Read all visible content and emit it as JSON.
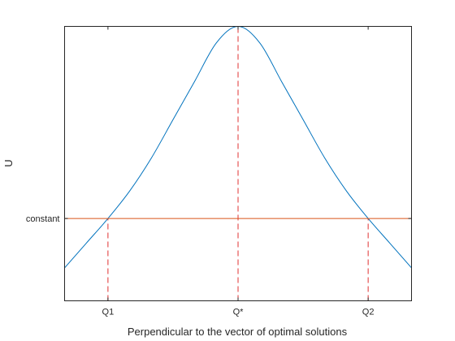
{
  "chart_data": {
    "type": "line",
    "xlabel": "Perpendicular to the vector of optimal solutions",
    "ylabel": "U",
    "xlim": [
      -4,
      4
    ],
    "ylim": [
      0,
      1
    ],
    "grid": false,
    "xticks": [
      {
        "value": -3,
        "label": "Q1"
      },
      {
        "value": 0,
        "label": "Q*"
      },
      {
        "value": 3,
        "label": "Q2"
      }
    ],
    "yticks": [
      {
        "value": 0.3,
        "label": "constant"
      }
    ],
    "series": [
      {
        "color": "#0072BD",
        "style": "solid",
        "x": [
          -4,
          -3.5,
          -3,
          -2.5,
          -2,
          -1.5,
          -1,
          -0.5,
          0,
          0.5,
          1,
          1.5,
          2,
          2.5,
          3,
          3.5,
          4
        ],
        "y": [
          0.12,
          0.21,
          0.3,
          0.4,
          0.52,
          0.66,
          0.8,
          0.94,
          1.0,
          0.94,
          0.8,
          0.66,
          0.52,
          0.4,
          0.3,
          0.21,
          0.12
        ]
      },
      {
        "color": "#D95319",
        "style": "solid",
        "x": [
          -4,
          4
        ],
        "y": [
          0.3,
          0.3
        ]
      }
    ],
    "markers": [
      {
        "x": 0,
        "y_from": 0,
        "y_to": 1.0,
        "color": "#E03030",
        "style": "dashed"
      },
      {
        "x": -3,
        "y_from": 0,
        "y_to": 0.3,
        "color": "#E03030",
        "style": "dashed"
      },
      {
        "x": 3,
        "y_from": 0,
        "y_to": 0.3,
        "color": "#E03030",
        "style": "dashed"
      }
    ]
  }
}
